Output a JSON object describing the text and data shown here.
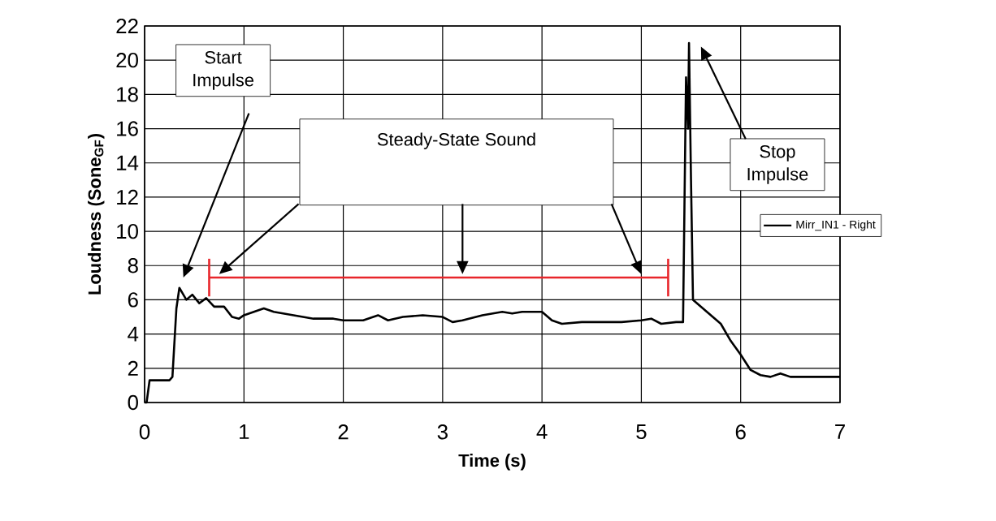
{
  "chart_data": {
    "type": "line",
    "xlabel": "Time (s)",
    "ylabel": "Loudness (Sone$_{GF}$)",
    "xlim": [
      0,
      7
    ],
    "xticks": [
      0,
      1,
      2,
      3,
      4,
      5,
      6,
      7
    ],
    "ylim": [
      0,
      22
    ],
    "yticks": [
      0,
      2,
      4,
      6,
      8,
      10,
      12,
      14,
      16,
      18,
      20,
      22
    ],
    "grid": true,
    "legend": "right",
    "marker": "none",
    "line_style": "solid",
    "series": [
      {
        "name": "Mirr_IN1 - Right",
        "color": "#000000",
        "x": [
          0,
          0.02,
          0.05,
          0.25,
          0.28,
          0.32,
          0.35,
          0.42,
          0.48,
          0.55,
          0.62,
          0.7,
          0.8,
          0.88,
          0.95,
          1.0,
          1.1,
          1.2,
          1.3,
          1.5,
          1.7,
          1.9,
          2.0,
          2.2,
          2.35,
          2.45,
          2.6,
          2.8,
          3.0,
          3.1,
          3.2,
          3.4,
          3.6,
          3.7,
          3.8,
          4.0,
          4.1,
          4.2,
          4.4,
          4.6,
          4.8,
          5.0,
          5.1,
          5.2,
          5.35,
          5.42,
          5.45,
          5.47,
          5.48,
          5.5,
          5.52,
          5.6,
          5.7,
          5.8,
          5.9,
          6.0,
          6.1,
          6.2,
          6.3,
          6.4,
          6.5,
          7.0
        ],
        "values": [
          0,
          0,
          1.3,
          1.3,
          1.5,
          5.5,
          6.7,
          6.0,
          6.3,
          5.8,
          6.1,
          5.6,
          5.6,
          5.0,
          4.9,
          5.1,
          5.3,
          5.5,
          5.3,
          5.1,
          4.9,
          4.9,
          4.8,
          4.8,
          5.1,
          4.8,
          5.0,
          5.1,
          5.0,
          4.7,
          4.8,
          5.1,
          5.3,
          5.2,
          5.3,
          5.3,
          4.8,
          4.6,
          4.7,
          4.7,
          4.7,
          4.8,
          4.9,
          4.6,
          4.7,
          4.7,
          19,
          16,
          21,
          13,
          6,
          5.6,
          5.1,
          4.6,
          3.6,
          2.8,
          1.9,
          1.6,
          1.5,
          1.7,
          1.5,
          1.5
        ]
      },
      {
        "type": "line",
        "color": "#e8262b",
        "x": [
          0.65,
          5.27
        ],
        "values": [
          7.3,
          7.3
        ],
        "errors": [
          1.1,
          1.1
        ]
      }
    ],
    "annotations": [
      "Start Impulse",
      "Stop Impulse",
      "Steady-State Sound"
    ]
  }
}
